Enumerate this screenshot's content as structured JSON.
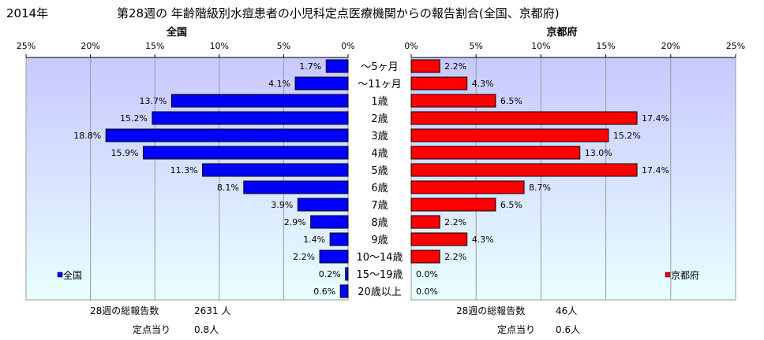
{
  "header": {
    "year": "2014年",
    "title": "第28週の 年齢階級別水痘患者の小児科定点医療機関からの報告割合(全国、京都府)"
  },
  "chart_data": {
    "type": "bar",
    "orientation": "horizontal",
    "categories": [
      "～5ヶ月",
      "～11ヶ月",
      "1歳",
      "2歳",
      "3歳",
      "4歳",
      "5歳",
      "6歳",
      "7歳",
      "8歳",
      "9歳",
      "10～14歳",
      "15～19歳",
      "20歳以上"
    ],
    "panels": [
      {
        "title": "全国",
        "direction": "left",
        "color": "#0000ff",
        "legend_label": "全国",
        "xlim": [
          0,
          25
        ],
        "ticks": [
          "25%",
          "20%",
          "15%",
          "10%",
          "5%",
          "0%"
        ],
        "values": [
          1.7,
          4.1,
          13.7,
          15.2,
          18.8,
          15.9,
          11.3,
          8.1,
          3.9,
          2.9,
          1.4,
          2.2,
          0.2,
          0.6
        ],
        "labels": [
          "1.7%",
          "4.1%",
          "13.7%",
          "15.2%",
          "18.8%",
          "15.9%",
          "11.3%",
          "8.1%",
          "3.9%",
          "2.9%",
          "1.4%",
          "2.2%",
          "0.2%",
          "0.6%"
        ]
      },
      {
        "title": "京都府",
        "direction": "right",
        "color": "#ff0000",
        "legend_label": "京都府",
        "xlim": [
          0,
          25
        ],
        "ticks": [
          "0%",
          "5%",
          "10%",
          "15%",
          "20%",
          "25%"
        ],
        "values": [
          2.2,
          4.3,
          6.5,
          17.4,
          15.2,
          13.0,
          17.4,
          8.7,
          6.5,
          2.2,
          4.3,
          2.2,
          0.0,
          0.0
        ],
        "labels": [
          "2.2%",
          "4.3%",
          "6.5%",
          "17.4%",
          "15.2%",
          "13.0%",
          "17.4%",
          "8.7%",
          "6.5%",
          "2.2%",
          "4.3%",
          "2.2%",
          "0.0%",
          "0.0%"
        ]
      }
    ],
    "grid": true
  },
  "stats": {
    "national": {
      "total_label": "28週の総報告数",
      "total_value": "2631 人",
      "per_label": "定点当り",
      "per_value": "0.8人"
    },
    "kyoto": {
      "total_label": "28週の総報告数",
      "total_value": "46人",
      "per_label": "定点当り",
      "per_value": "0.6人"
    }
  }
}
